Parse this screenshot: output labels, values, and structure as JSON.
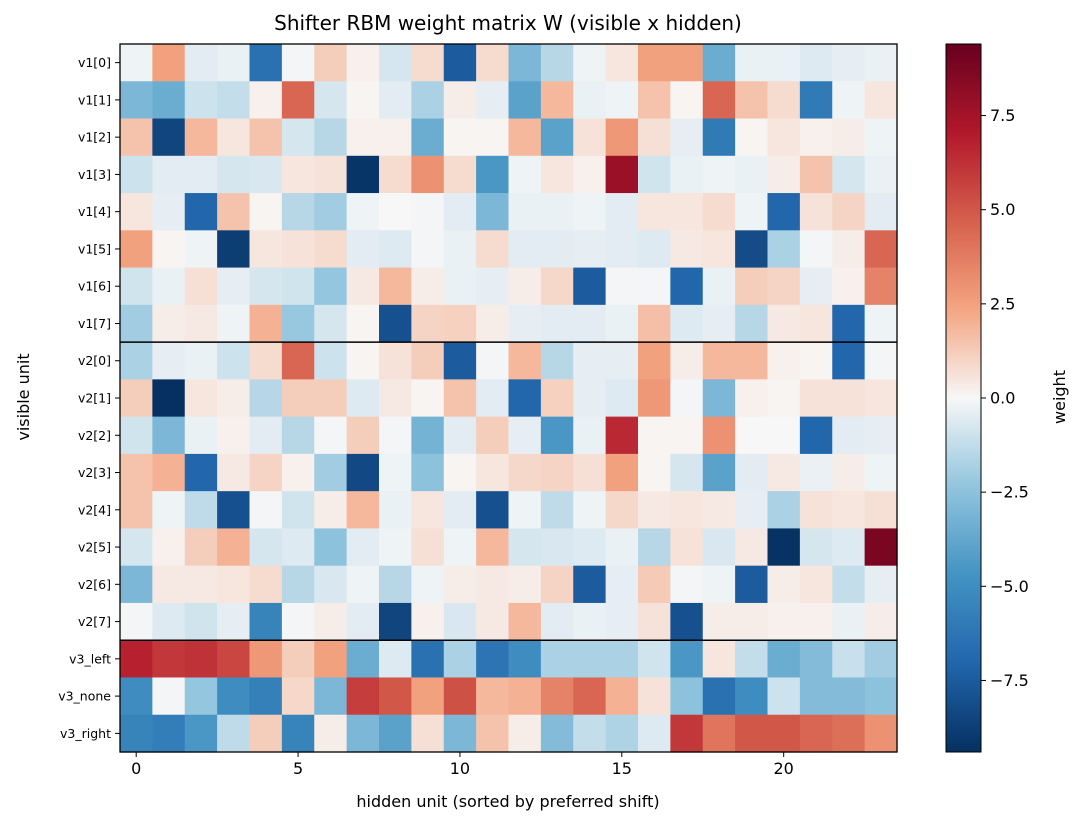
{
  "chart_data": {
    "type": "heatmap",
    "title": "Shifter RBM weight matrix W (visible x hidden)",
    "xlabel": "hidden unit (sorted by preferred shift)",
    "ylabel": "visible unit",
    "colorbar_label": "weight",
    "colormap": "RdBu_r",
    "vmin": -9.4,
    "vmax": 9.4,
    "x_ticks": [
      0,
      5,
      10,
      15,
      20
    ],
    "colorbar_ticks": [
      {
        "value": 7.5,
        "label": "7.5"
      },
      {
        "value": 5.0,
        "label": "5.0"
      },
      {
        "value": 2.5,
        "label": "2.5"
      },
      {
        "value": 0.0,
        "label": "0.0"
      },
      {
        "value": -2.5,
        "label": "−2.5"
      },
      {
        "value": -5.0,
        "label": "−5.0"
      },
      {
        "value": -7.5,
        "label": "−7.5"
      }
    ],
    "group_boundaries_after_rows": [
      7,
      15
    ],
    "row_labels": [
      "v1[0]",
      "v1[1]",
      "v1[2]",
      "v1[3]",
      "v1[4]",
      "v1[5]",
      "v1[6]",
      "v1[7]",
      "v2[0]",
      "v2[1]",
      "v2[2]",
      "v2[3]",
      "v2[4]",
      "v2[5]",
      "v2[6]",
      "v2[7]",
      "v3_left",
      "v3_none",
      "v3_right"
    ],
    "values": [
      [
        -0.2,
        2.5,
        -0.5,
        -0.3,
        -6.5,
        -0.1,
        1.2,
        0.2,
        -0.8,
        0.8,
        -7.5,
        0.8,
        -3.0,
        -1.5,
        -0.2,
        0.5,
        2.5,
        2.5,
        -3.5,
        -0.3,
        -0.3,
        -0.6,
        -0.4,
        -0.3
      ],
      [
        -3.0,
        -3.5,
        -1.0,
        -1.2,
        0.2,
        4.5,
        -0.8,
        0.1,
        -0.5,
        -1.8,
        0.3,
        -0.4,
        -4.0,
        1.8,
        -0.3,
        -0.2,
        1.5,
        0.1,
        4.5,
        1.5,
        0.8,
        -6.0,
        -0.2,
        0.5
      ],
      [
        1.5,
        -8.5,
        1.8,
        0.5,
        1.5,
        -0.8,
        -1.5,
        0.2,
        0.2,
        -3.5,
        0.1,
        0.1,
        1.8,
        -4.0,
        0.6,
        2.8,
        0.7,
        -0.4,
        -6.0,
        0.1,
        0.5,
        0.2,
        0.3,
        -0.2
      ],
      [
        -1.0,
        -0.5,
        -0.5,
        -0.8,
        -0.7,
        0.5,
        0.6,
        -9.2,
        0.8,
        3.0,
        0.8,
        -4.5,
        -0.2,
        0.5,
        0.2,
        7.8,
        -0.9,
        -0.3,
        -0.2,
        -0.3,
        0.3,
        1.5,
        -0.8,
        -0.3
      ],
      [
        0.5,
        -0.4,
        -7.0,
        1.5,
        0.1,
        -1.5,
        -2.0,
        -0.2,
        0.0,
        -0.1,
        -0.5,
        -3.0,
        -0.3,
        -0.3,
        -0.2,
        -0.5,
        0.5,
        0.5,
        0.8,
        -0.2,
        -7.0,
        0.6,
        1.0,
        -0.5
      ],
      [
        2.5,
        0.1,
        -0.2,
        -8.8,
        0.5,
        0.6,
        0.8,
        -0.5,
        -0.6,
        -0.1,
        -0.3,
        0.8,
        -0.5,
        -0.5,
        -0.4,
        -0.5,
        -0.6,
        0.4,
        0.5,
        -8.2,
        -1.8,
        -0.1,
        0.3,
        4.5
      ],
      [
        -0.9,
        -0.3,
        0.7,
        -0.4,
        -0.8,
        -0.9,
        -2.3,
        0.4,
        1.8,
        0.3,
        -0.3,
        -0.4,
        0.3,
        0.9,
        -7.5,
        -0.1,
        -0.1,
        -7.0,
        -0.3,
        1.2,
        1.0,
        -0.4,
        0.2,
        3.5
      ],
      [
        -2.0,
        0.3,
        0.4,
        -0.2,
        2.0,
        -2.2,
        -0.8,
        0.1,
        -8.0,
        1.0,
        1.1,
        0.3,
        -0.4,
        -0.5,
        -0.5,
        -0.3,
        1.6,
        -0.6,
        -0.4,
        -1.5,
        0.4,
        0.5,
        -7.0,
        -0.2
      ],
      [
        -1.8,
        -0.4,
        -0.3,
        -1.0,
        0.8,
        4.5,
        -1.0,
        0.1,
        0.6,
        1.2,
        -7.5,
        -0.1,
        1.8,
        -1.5,
        -0.4,
        -0.4,
        2.5,
        0.3,
        1.8,
        1.8,
        0.2,
        0.1,
        -7.0,
        -0.1
      ],
      [
        1.2,
        -9.4,
        0.5,
        0.3,
        -1.5,
        1.2,
        1.2,
        -0.6,
        0.4,
        0.1,
        1.5,
        -0.5,
        -7.0,
        1.1,
        -0.4,
        -0.6,
        2.8,
        -0.1,
        -3.0,
        0.2,
        0.1,
        0.6,
        0.6,
        0.5
      ],
      [
        -0.9,
        -3.0,
        -0.3,
        0.2,
        -0.5,
        -1.5,
        -0.1,
        1.2,
        -0.1,
        -3.2,
        -0.5,
        1.2,
        -0.4,
        -4.5,
        -0.3,
        6.5,
        0.1,
        0.1,
        3.0,
        0.0,
        0.0,
        -7.0,
        -0.5,
        -0.4
      ],
      [
        1.5,
        2.0,
        -7.0,
        0.4,
        1.0,
        0.2,
        -2.0,
        -8.3,
        -0.2,
        -2.5,
        0.1,
        0.5,
        0.9,
        1.0,
        0.7,
        2.5,
        0.1,
        -0.8,
        -4.0,
        -0.5,
        0.4,
        -0.3,
        0.3,
        -0.2
      ],
      [
        1.5,
        -0.2,
        -1.3,
        -8.0,
        -0.1,
        -0.9,
        0.3,
        1.8,
        -0.3,
        0.5,
        -0.5,
        -8.0,
        -0.2,
        -1.3,
        -0.2,
        0.9,
        0.4,
        0.5,
        0.4,
        -0.4,
        -1.8,
        0.6,
        0.5,
        0.7
      ],
      [
        -0.8,
        0.2,
        1.2,
        2.0,
        -0.8,
        -0.6,
        -2.5,
        -0.5,
        -0.2,
        0.7,
        -0.2,
        1.8,
        -0.8,
        -0.7,
        -0.6,
        -0.3,
        -1.5,
        0.6,
        -0.7,
        0.4,
        -9.3,
        -0.8,
        -0.6,
        8.8
      ],
      [
        -3.0,
        0.4,
        0.4,
        0.5,
        0.8,
        -1.5,
        -0.7,
        -0.2,
        -1.5,
        -0.2,
        0.3,
        0.4,
        0.3,
        1.0,
        -7.5,
        -0.4,
        1.3,
        -0.1,
        -0.2,
        -7.5,
        0.3,
        0.5,
        -1.2,
        -0.4
      ],
      [
        -0.1,
        -0.6,
        -0.9,
        -0.4,
        -5.5,
        -0.1,
        0.3,
        -0.5,
        -8.5,
        0.2,
        -0.7,
        0.4,
        1.8,
        -0.5,
        -0.3,
        -0.4,
        0.6,
        -8.0,
        0.3,
        0.3,
        0.2,
        0.2,
        -0.3,
        0.3
      ],
      [
        6.8,
        6.0,
        6.2,
        5.5,
        2.8,
        1.2,
        2.5,
        -3.5,
        -0.6,
        -6.5,
        -1.8,
        -6.3,
        -5.0,
        -1.8,
        -1.8,
        -1.8,
        -0.9,
        -4.5,
        0.5,
        -1.2,
        -3.5,
        -2.8,
        -1.1,
        -2.0
      ],
      [
        -5.0,
        -0.1,
        -2.3,
        -5.0,
        -5.7,
        0.9,
        -3.0,
        5.8,
        5.0,
        2.5,
        5.2,
        1.8,
        2.0,
        3.5,
        4.5,
        2.0,
        0.6,
        -2.5,
        -6.5,
        -5.0,
        -1.0,
        -2.8,
        -2.8,
        -2.5
      ],
      [
        -5.5,
        -5.8,
        -4.5,
        -1.3,
        1.2,
        -5.5,
        0.3,
        -3.0,
        -4.0,
        0.7,
        -3.0,
        1.5,
        0.3,
        -2.8,
        -1.2,
        -1.7,
        -0.6,
        6.0,
        4.0,
        5.0,
        5.0,
        4.5,
        4.2,
        3.0
      ]
    ]
  }
}
